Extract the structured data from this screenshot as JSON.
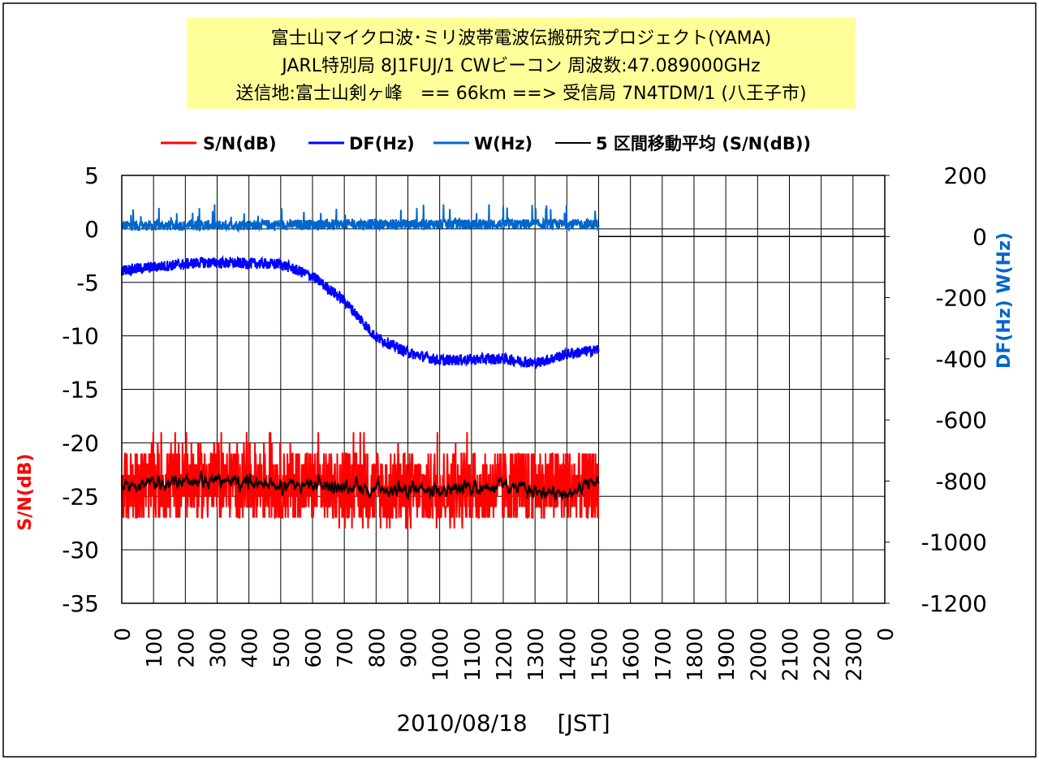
{
  "chart_data": {
    "type": "line",
    "title_lines": [
      "富士山マイクロ波･ミリ波帯電波伝搬研究プロジェクト(YAMA)",
      "JARL特別局 8J1FUJ/1 CWビーコン 周波数:47.089000GHz",
      "送信地:富士山剣ヶ峰　== 66km ==> 受信局 7N4TDM/1 (八王子市)"
    ],
    "xlabel": "2010/08/18　 [JST]",
    "ylabel_left": "S/N(dB)",
    "ylabel_right": "DF(Hz)  W(Hz)",
    "x_ticks": [
      "0",
      "100",
      "200",
      "300",
      "400",
      "500",
      "600",
      "700",
      "800",
      "900",
      "1000",
      "1100",
      "1200",
      "1300",
      "1400",
      "1500",
      "1600",
      "1700",
      "1800",
      "1900",
      "2000",
      "2100",
      "2200",
      "2300",
      "0"
    ],
    "x_range": [
      0,
      2400
    ],
    "y_left_range": [
      -35,
      5
    ],
    "y_left_ticks": [
      "5",
      "0",
      "-5",
      "-10",
      "-15",
      "-20",
      "-25",
      "-30",
      "-35"
    ],
    "y_right_range": [
      -1200,
      200
    ],
    "y_right_ticks": [
      "200",
      "0",
      "-200",
      "-400",
      "-600",
      "-800",
      "-1000",
      "-1200"
    ],
    "grid": true,
    "legend_position": "top",
    "data_end_x": 1500,
    "series": [
      {
        "name": "S/N(dB)",
        "axis": "left",
        "color": "#ff0000",
        "style": "noisy",
        "mean_profile": [
          [
            0,
            -24
          ],
          [
            300,
            -23.5
          ],
          [
            600,
            -24
          ],
          [
            900,
            -24.5
          ],
          [
            1200,
            -24
          ],
          [
            1500,
            -24
          ]
        ],
        "range": [
          -28,
          -21
        ]
      },
      {
        "name": "DF(Hz)",
        "axis": "right",
        "color": "#0000ff",
        "style": "noisy",
        "mean_profile": [
          [
            0,
            -110
          ],
          [
            250,
            -85
          ],
          [
            500,
            -90
          ],
          [
            600,
            -130
          ],
          [
            700,
            -210
          ],
          [
            800,
            -330
          ],
          [
            900,
            -380
          ],
          [
            1000,
            -405
          ],
          [
            1200,
            -400
          ],
          [
            1300,
            -415
          ],
          [
            1400,
            -385
          ],
          [
            1500,
            -370
          ]
        ],
        "range": [
          -430,
          -50
        ]
      },
      {
        "name": "W(Hz)",
        "axis": "right",
        "color": "#0066cc",
        "style": "noisy",
        "mean_profile": [
          [
            0,
            35
          ],
          [
            750,
            40
          ],
          [
            1500,
            40
          ]
        ],
        "range": [
          20,
          105
        ]
      },
      {
        "name": "5 区間移動平均 (S/N(dB))",
        "axis": "left",
        "color": "#000000",
        "style": "smooth",
        "mean_profile": [
          [
            0,
            -24
          ],
          [
            300,
            -23.5
          ],
          [
            600,
            -24
          ],
          [
            900,
            -24.5
          ],
          [
            1200,
            -24
          ],
          [
            1400,
            -25.5
          ],
          [
            1500,
            -23
          ]
        ],
        "range": [
          -27,
          -22
        ]
      }
    ]
  }
}
